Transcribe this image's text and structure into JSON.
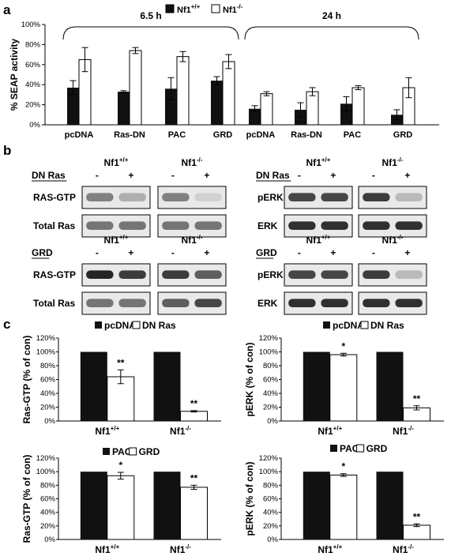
{
  "panel_labels": {
    "a": "a",
    "b": "b",
    "c": "c"
  },
  "genotypes": {
    "wt": {
      "base": "Nf1",
      "sup": "+/+"
    },
    "ko": {
      "base": "Nf1",
      "sup": "-/-"
    }
  },
  "chart_data": [
    {
      "id": "a",
      "type": "bar",
      "ylabel": "% SEAP activity",
      "ylim": [
        0,
        100
      ],
      "yticks": [
        "0%",
        "20%",
        "40%",
        "60%",
        "80%",
        "100%"
      ],
      "legend": [
        {
          "base": "Nf1",
          "sup": "+/+",
          "color": "#111111"
        },
        {
          "base": "Nf1",
          "sup": "-/-",
          "color": "#ffffff"
        }
      ],
      "groups": [
        {
          "title": "6.5 h",
          "categories": [
            "pcDNA",
            "Ras-DN",
            "PAC",
            "GRD"
          ],
          "series": [
            {
              "values": [
                37,
                33,
                36,
                44
              ],
              "errors": [
                7,
                1,
                11,
                4
              ]
            },
            {
              "values": [
                65,
                74,
                68,
                63
              ],
              "errors": [
                12,
                3,
                5,
                7
              ]
            }
          ]
        },
        {
          "title": "24 h",
          "categories": [
            "pcDNA",
            "Ras-DN",
            "PAC",
            "GRD"
          ],
          "series": [
            {
              "values": [
                16,
                15,
                21,
                10
              ],
              "errors": [
                3,
                7,
                7,
                5
              ]
            },
            {
              "values": [
                31,
                33,
                37,
                37
              ],
              "errors": [
                2,
                4,
                2,
                10
              ]
            }
          ]
        }
      ]
    },
    {
      "id": "c1",
      "type": "bar",
      "ylabel": "Ras-GTP (% of con)",
      "ylim": [
        0,
        120
      ],
      "yticks": [
        "0%",
        "20%",
        "40%",
        "60%",
        "80%",
        "100%",
        "120%"
      ],
      "legend": [
        "pcDNA",
        "DN Ras"
      ],
      "series": [
        {
          "name": "pcDNA",
          "values": [
            100,
            100
          ]
        },
        {
          "name": "DN Ras",
          "values": [
            64,
            14
          ],
          "errors": [
            10,
            1
          ]
        }
      ],
      "stars": [
        "**",
        "**"
      ]
    },
    {
      "id": "c2",
      "type": "bar",
      "ylabel": "pERK (% of con)",
      "ylim": [
        0,
        120
      ],
      "yticks": [
        "0%",
        "20%",
        "40%",
        "60%",
        "80%",
        "100%",
        "120%"
      ],
      "legend": [
        "pcDNA",
        "DN Ras"
      ],
      "series": [
        {
          "name": "pcDNA",
          "values": [
            100,
            100
          ]
        },
        {
          "name": "DN Ras",
          "values": [
            96,
            19
          ],
          "errors": [
            2,
            3
          ]
        }
      ],
      "stars": [
        "*",
        "**"
      ]
    },
    {
      "id": "c3",
      "type": "bar",
      "ylabel": "Ras-GTP (% of con)",
      "ylim": [
        0,
        120
      ],
      "yticks": [
        "0%",
        "20%",
        "40%",
        "60%",
        "80%",
        "100%",
        "120%"
      ],
      "legend": [
        "PAC",
        "GRD"
      ],
      "series": [
        {
          "name": "PAC",
          "values": [
            100,
            100
          ]
        },
        {
          "name": "GRD",
          "values": [
            94,
            77
          ],
          "errors": [
            5,
            3
          ]
        }
      ],
      "stars": [
        "*",
        "**"
      ]
    },
    {
      "id": "c4",
      "type": "bar",
      "ylabel": "pERK (% of con)",
      "ylim": [
        0,
        120
      ],
      "yticks": [
        "0%",
        "20%",
        "40%",
        "60%",
        "80%",
        "100%",
        "120%"
      ],
      "legend": [
        "PAC",
        "GRD"
      ],
      "series": [
        {
          "name": "PAC",
          "values": [
            100,
            100
          ]
        },
        {
          "name": "GRD",
          "values": [
            95,
            21
          ],
          "errors": [
            2,
            2
          ]
        }
      ],
      "stars": [
        "*",
        "**"
      ]
    }
  ],
  "blots": [
    {
      "id": "b1",
      "treatment": "DN Ras",
      "signs": [
        "-",
        "+"
      ],
      "rows": [
        "RAS-GTP",
        "Total Ras"
      ]
    },
    {
      "id": "b2",
      "treatment": "DN Ras",
      "signs": [
        "-",
        "+"
      ],
      "rows": [
        "pERK",
        "ERK"
      ]
    },
    {
      "id": "b3",
      "treatment": "GRD",
      "signs": [
        "-",
        "+"
      ],
      "rows": [
        "RAS-GTP",
        "Total Ras"
      ]
    },
    {
      "id": "b4",
      "treatment": "GRD",
      "signs": [
        "-",
        "+"
      ],
      "rows": [
        "pERK",
        "ERK"
      ]
    }
  ]
}
